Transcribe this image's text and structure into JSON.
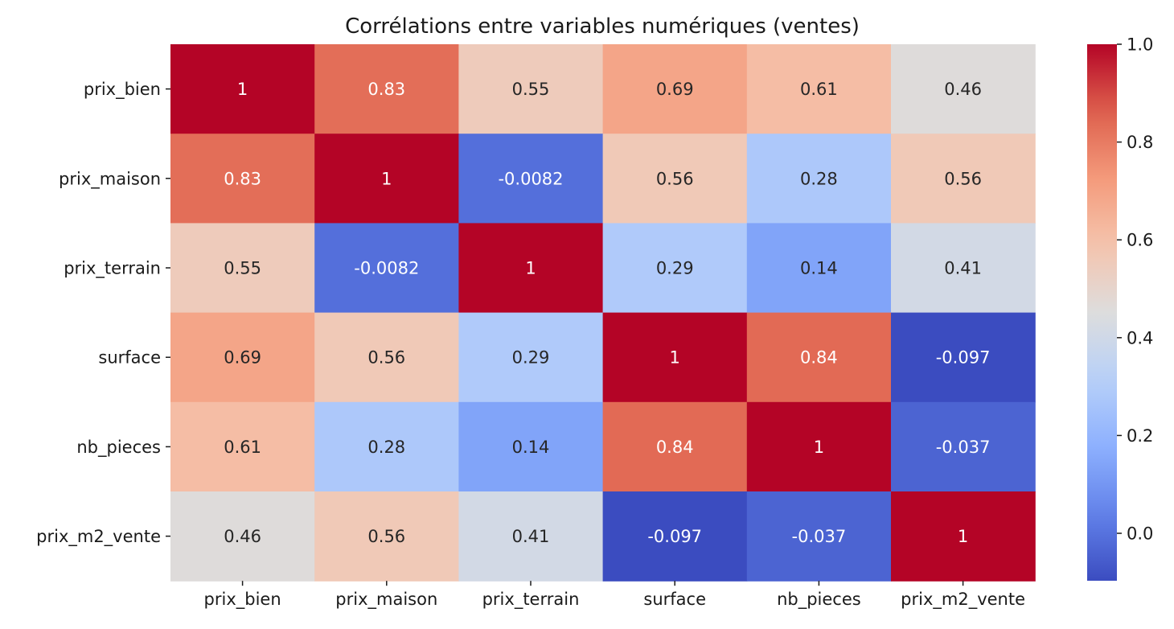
{
  "chart_data": {
    "type": "heatmap",
    "title": "Corrélations entre variables numériques (ventes)",
    "row_labels": [
      "prix_bien",
      "prix_maison",
      "prix_terrain",
      "surface",
      "nb_pieces",
      "prix_m2_vente"
    ],
    "col_labels": [
      "prix_bien",
      "prix_maison",
      "prix_terrain",
      "surface",
      "nb_pieces",
      "prix_m2_vente"
    ],
    "values": [
      [
        1,
        0.83,
        0.55,
        0.69,
        0.61,
        0.46
      ],
      [
        0.83,
        1,
        -0.0082,
        0.56,
        0.28,
        0.56
      ],
      [
        0.55,
        -0.0082,
        1,
        0.29,
        0.14,
        0.41
      ],
      [
        0.69,
        0.56,
        0.29,
        1,
        0.84,
        -0.097
      ],
      [
        0.61,
        0.28,
        0.14,
        0.84,
        1,
        -0.037
      ],
      [
        0.46,
        0.56,
        0.41,
        -0.097,
        -0.037,
        1
      ]
    ],
    "annotations": [
      [
        "1",
        "0.83",
        "0.55",
        "0.69",
        "0.61",
        "0.46"
      ],
      [
        "0.83",
        "1",
        "-0.0082",
        "0.56",
        "0.28",
        "0.56"
      ],
      [
        "0.55",
        "-0.0082",
        "1",
        "0.29",
        "0.14",
        "0.41"
      ],
      [
        "0.69",
        "0.56",
        "0.29",
        "1",
        "0.84",
        "-0.097"
      ],
      [
        "0.61",
        "0.28",
        "0.14",
        "0.84",
        "1",
        "-0.037"
      ],
      [
        "0.46",
        "0.56",
        "0.41",
        "-0.097",
        "-0.037",
        "1"
      ]
    ],
    "colormap": "coolwarm",
    "vmin": -0.097,
    "vmax": 1.0,
    "colorbar_ticks": [
      "0.0",
      "0.2",
      "0.4",
      "0.6",
      "0.8",
      "1.0"
    ],
    "colorbar_tick_values": [
      0,
      0.2,
      0.4,
      0.6,
      0.8,
      1.0
    ]
  }
}
